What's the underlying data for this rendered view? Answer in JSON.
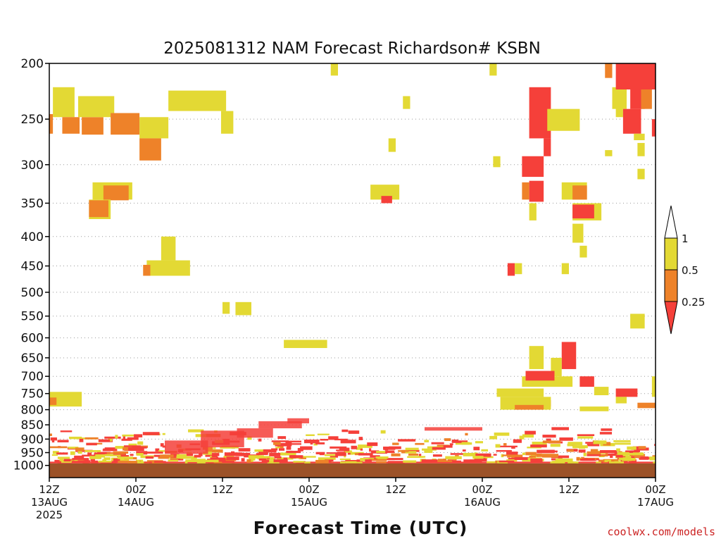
{
  "chart_data": {
    "type": "heatmap",
    "title": "2025081312 NAM Forecast Richardson# KSBN",
    "xlabel": "Forecast Time (UTC)",
    "ylabel": "",
    "y_axis": {
      "scale": "log",
      "reversed": true,
      "units": "hPa",
      "ticks": [
        200,
        250,
        300,
        350,
        400,
        450,
        500,
        550,
        600,
        650,
        700,
        750,
        800,
        850,
        900,
        950,
        1000
      ],
      "range": [
        200,
        1050
      ]
    },
    "x_axis": {
      "range_hours": [
        0,
        84
      ],
      "ticks": [
        {
          "hour": 0,
          "label": "12Z",
          "date": "13AUG",
          "year": "2025"
        },
        {
          "hour": 12,
          "label": "00Z",
          "date": "14AUG",
          "year": ""
        },
        {
          "hour": 24,
          "label": "12Z",
          "date": "",
          "year": ""
        },
        {
          "hour": 36,
          "label": "00Z",
          "date": "15AUG",
          "year": ""
        },
        {
          "hour": 48,
          "label": "12Z",
          "date": "",
          "year": ""
        },
        {
          "hour": 60,
          "label": "00Z",
          "date": "16AUG",
          "year": ""
        },
        {
          "hour": 72,
          "label": "12Z",
          "date": "",
          "year": ""
        },
        {
          "hour": 84,
          "label": "00Z",
          "date": "17AUG",
          "year": ""
        }
      ]
    },
    "grid": "dotted horizontal at pressure ticks",
    "legend": {
      "placement": "right",
      "labels": [
        "1",
        "0.5",
        "0.25"
      ],
      "bins": [
        {
          "range": "> 1",
          "color": "#ffffff"
        },
        {
          "range": "0.5-1",
          "color": "#e3d934"
        },
        {
          "range": "0.25-0.5",
          "color": "#ee8229"
        },
        {
          "range": "< 0.25",
          "color": "#f5403a"
        }
      ]
    },
    "ground_below_hpa": 992,
    "ground_color": "#9c5228",
    "colors": {
      "y": "#e3d934",
      "o": "#ee8229",
      "r": "#f5403a"
    },
    "cells": [
      {
        "t0": 0.5,
        "t1": 3.5,
        "p0": 220,
        "p1": 248,
        "c": "y"
      },
      {
        "t0": 1.8,
        "t1": 4.2,
        "p0": 248,
        "p1": 265,
        "c": "o"
      },
      {
        "t0": 0,
        "t1": 0.5,
        "p0": 245,
        "p1": 265,
        "c": "o"
      },
      {
        "t0": 4.5,
        "t1": 7.5,
        "p0": 248,
        "p1": 266,
        "c": "o"
      },
      {
        "t0": 4.0,
        "t1": 9.0,
        "p0": 228,
        "p1": 248,
        "c": "y"
      },
      {
        "t0": 8.5,
        "t1": 12.5,
        "p0": 244,
        "p1": 266,
        "c": "o"
      },
      {
        "t0": 12.5,
        "t1": 16.5,
        "p0": 248,
        "p1": 270,
        "c": "y"
      },
      {
        "t0": 12.5,
        "t1": 15.5,
        "p0": 270,
        "p1": 295,
        "c": "o"
      },
      {
        "t0": 16.5,
        "t1": 24.5,
        "p0": 223,
        "p1": 242,
        "c": "y"
      },
      {
        "t0": 23.8,
        "t1": 25.5,
        "p0": 242,
        "p1": 265,
        "c": "y"
      },
      {
        "t0": 6.0,
        "t1": 11.5,
        "p0": 322,
        "p1": 345,
        "c": "y"
      },
      {
        "t0": 7.5,
        "t1": 11.0,
        "p0": 326,
        "p1": 346,
        "c": "o"
      },
      {
        "t0": 5.5,
        "t1": 8.5,
        "p0": 345,
        "p1": 373,
        "c": "y"
      },
      {
        "t0": 5.5,
        "t1": 8.2,
        "p0": 346,
        "p1": 370,
        "c": "o"
      },
      {
        "t0": 13.5,
        "t1": 19.5,
        "p0": 440,
        "p1": 468,
        "c": "y"
      },
      {
        "t0": 15.5,
        "t1": 17.5,
        "p0": 400,
        "p1": 440,
        "c": "y"
      },
      {
        "t0": 13.0,
        "t1": 14.0,
        "p0": 448,
        "p1": 468,
        "c": "o"
      },
      {
        "t0": 24.0,
        "t1": 25.0,
        "p0": 520,
        "p1": 545,
        "c": "y"
      },
      {
        "t0": 25.8,
        "t1": 28.0,
        "p0": 520,
        "p1": 548,
        "c": "y"
      },
      {
        "t0": 32.5,
        "t1": 38.5,
        "p0": 605,
        "p1": 625,
        "c": "y"
      },
      {
        "t0": 39.0,
        "t1": 40.0,
        "p0": 200,
        "p1": 210,
        "c": "y"
      },
      {
        "t0": 44.5,
        "t1": 48.5,
        "p0": 325,
        "p1": 345,
        "c": "y"
      },
      {
        "t0": 46.0,
        "t1": 47.5,
        "p0": 340,
        "p1": 350,
        "c": "r"
      },
      {
        "t0": 47.0,
        "t1": 48.0,
        "p0": 270,
        "p1": 285,
        "c": "y"
      },
      {
        "t0": 49.0,
        "t1": 50.0,
        "p0": 228,
        "p1": 240,
        "c": "y"
      },
      {
        "t0": 61.0,
        "t1": 62.0,
        "p0": 200,
        "p1": 210,
        "c": "y"
      },
      {
        "t0": 61.5,
        "t1": 62.5,
        "p0": 290,
        "p1": 303,
        "c": "y"
      },
      {
        "t0": 66.5,
        "t1": 69.5,
        "p0": 220,
        "p1": 270,
        "c": "r"
      },
      {
        "t0": 68.5,
        "t1": 69.5,
        "p0": 270,
        "p1": 290,
        "c": "r"
      },
      {
        "t0": 69.0,
        "t1": 73.5,
        "p0": 240,
        "p1": 262,
        "c": "y"
      },
      {
        "t0": 65.5,
        "t1": 68.5,
        "p0": 290,
        "p1": 315,
        "c": "r"
      },
      {
        "t0": 66.5,
        "t1": 68.5,
        "p0": 320,
        "p1": 348,
        "c": "r"
      },
      {
        "t0": 65.5,
        "t1": 66.5,
        "p0": 322,
        "p1": 345,
        "c": "o"
      },
      {
        "t0": 66.5,
        "t1": 67.5,
        "p0": 350,
        "p1": 375,
        "c": "y"
      },
      {
        "t0": 71.0,
        "t1": 74.5,
        "p0": 322,
        "p1": 345,
        "c": "y"
      },
      {
        "t0": 72.5,
        "t1": 74.5,
        "p0": 326,
        "p1": 345,
        "c": "o"
      },
      {
        "t0": 72.5,
        "t1": 76.5,
        "p0": 350,
        "p1": 375,
        "c": "y"
      },
      {
        "t0": 72.5,
        "t1": 75.5,
        "p0": 352,
        "p1": 372,
        "c": "r"
      },
      {
        "t0": 72.5,
        "t1": 74.0,
        "p0": 380,
        "p1": 410,
        "c": "y"
      },
      {
        "t0": 73.5,
        "t1": 74.5,
        "p0": 415,
        "p1": 435,
        "c": "y"
      },
      {
        "t0": 71.0,
        "t1": 72.0,
        "p0": 445,
        "p1": 465,
        "c": "y"
      },
      {
        "t0": 63.5,
        "t1": 64.5,
        "p0": 445,
        "p1": 468,
        "c": "r"
      },
      {
        "t0": 64.5,
        "t1": 65.5,
        "p0": 445,
        "p1": 465,
        "c": "y"
      },
      {
        "t0": 78.0,
        "t1": 80.0,
        "p0": 220,
        "p1": 240,
        "c": "y"
      },
      {
        "t0": 78.5,
        "t1": 84.0,
        "p0": 200,
        "p1": 222,
        "c": "r"
      },
      {
        "t0": 77.0,
        "t1": 78.0,
        "p0": 200,
        "p1": 212,
        "c": "o"
      },
      {
        "t0": 78.5,
        "t1": 79.5,
        "p0": 222,
        "p1": 248,
        "c": "y"
      },
      {
        "t0": 79.5,
        "t1": 82.0,
        "p0": 240,
        "p1": 265,
        "c": "r"
      },
      {
        "t0": 80.5,
        "t1": 82.5,
        "p0": 222,
        "p1": 240,
        "c": "r"
      },
      {
        "t0": 82.0,
        "t1": 83.5,
        "p0": 222,
        "p1": 240,
        "c": "o"
      },
      {
        "t0": 81.0,
        "t1": 82.5,
        "p0": 265,
        "p1": 272,
        "c": "y"
      },
      {
        "t0": 81.5,
        "t1": 82.5,
        "p0": 275,
        "p1": 290,
        "c": "y"
      },
      {
        "t0": 83.5,
        "t1": 84.0,
        "p0": 250,
        "p1": 268,
        "c": "r"
      },
      {
        "t0": 81.5,
        "t1": 82.5,
        "p0": 305,
        "p1": 318,
        "c": "y"
      },
      {
        "t0": 77.0,
        "t1": 78.0,
        "p0": 283,
        "p1": 290,
        "c": "y"
      },
      {
        "t0": 80.5,
        "t1": 82.5,
        "p0": 545,
        "p1": 578,
        "c": "y"
      },
      {
        "t0": 0,
        "t1": 4.5,
        "p0": 745,
        "p1": 790,
        "c": "y"
      },
      {
        "t0": 0,
        "t1": 1.0,
        "p0": 762,
        "p1": 785,
        "c": "o"
      },
      {
        "t0": 66.5,
        "t1": 68.5,
        "p0": 620,
        "p1": 680,
        "c": "y"
      },
      {
        "t0": 71.0,
        "t1": 73.0,
        "p0": 610,
        "p1": 680,
        "c": "r"
      },
      {
        "t0": 69.5,
        "t1": 71.0,
        "p0": 650,
        "p1": 700,
        "c": "y"
      },
      {
        "t0": 65.5,
        "t1": 72.5,
        "p0": 700,
        "p1": 730,
        "c": "y"
      },
      {
        "t0": 66.0,
        "t1": 70.0,
        "p0": 685,
        "p1": 712,
        "c": "r"
      },
      {
        "t0": 62.0,
        "t1": 68.5,
        "p0": 735,
        "p1": 760,
        "c": "y"
      },
      {
        "t0": 63.5,
        "t1": 69.5,
        "p0": 770,
        "p1": 790,
        "c": "r"
      },
      {
        "t0": 62.5,
        "t1": 69.5,
        "p0": 760,
        "p1": 800,
        "c": "y"
      },
      {
        "t0": 64.5,
        "t1": 68.5,
        "p0": 785,
        "p1": 800,
        "c": "o"
      },
      {
        "t0": 73.5,
        "t1": 75.5,
        "p0": 700,
        "p1": 730,
        "c": "r"
      },
      {
        "t0": 75.5,
        "t1": 77.5,
        "p0": 730,
        "p1": 755,
        "c": "y"
      },
      {
        "t0": 78.5,
        "t1": 81.5,
        "p0": 735,
        "p1": 760,
        "c": "r"
      },
      {
        "t0": 78.5,
        "t1": 80.0,
        "p0": 760,
        "p1": 780,
        "c": "y"
      },
      {
        "t0": 81.5,
        "t1": 84.0,
        "p0": 778,
        "p1": 795,
        "c": "o"
      },
      {
        "t0": 73.5,
        "t1": 77.5,
        "p0": 790,
        "p1": 805,
        "c": "y"
      },
      {
        "t0": 83.5,
        "t1": 84.0,
        "p0": 700,
        "p1": 760,
        "c": "y"
      },
      {
        "t0": 0,
        "t1": 84.0,
        "p0": 985,
        "p1": 992,
        "c": "r"
      }
    ],
    "noise_band_hpa": [
      855,
      985
    ]
  },
  "credit": "coolwx.com/models"
}
